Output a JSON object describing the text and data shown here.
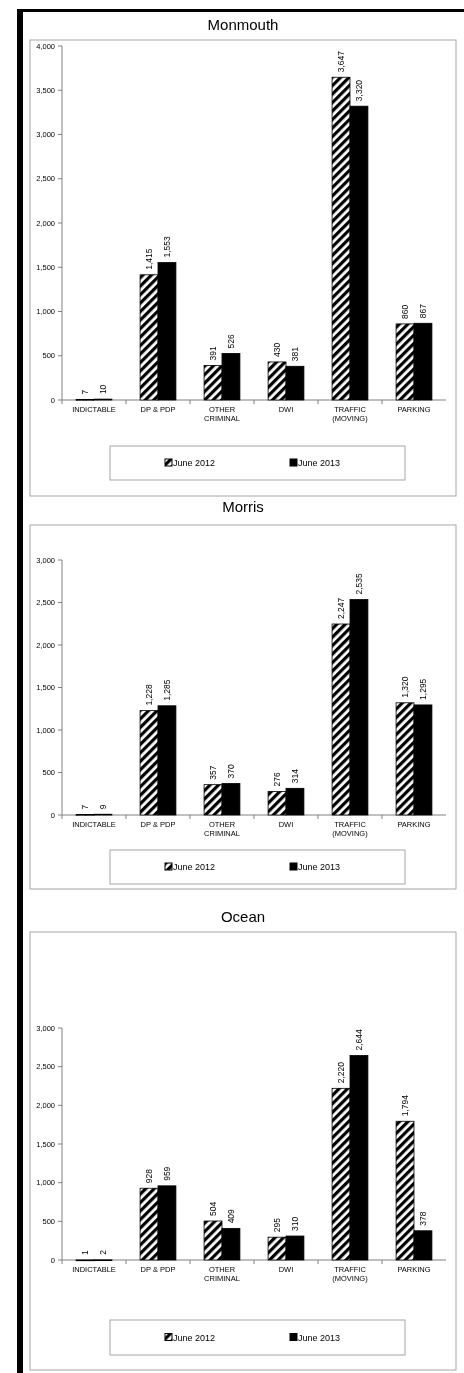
{
  "chart_data": [
    {
      "type": "bar",
      "title": "Monmouth",
      "categories": [
        "INDICTABLE",
        "DP & PDP",
        "OTHER CRIMINAL",
        "DWI",
        "TRAFFIC (MOVING)",
        "PARKING"
      ],
      "series": [
        {
          "name": "June 2012",
          "color": "#000000",
          "values": [
            7,
            1415,
            391,
            430,
            3647,
            860
          ],
          "value_labels": [
            "7",
            "1,415",
            "391",
            "430",
            "3,647",
            "860"
          ]
        },
        {
          "name": "June 2013",
          "color": "#000000",
          "values": [
            10,
            1553,
            526,
            381,
            3320,
            867
          ],
          "value_labels": [
            "10",
            "1,553",
            "526",
            "381",
            "3,320",
            "867"
          ]
        }
      ],
      "ylim": [
        0,
        4000
      ],
      "yticks": [
        {
          "value": 0,
          "label": "0"
        },
        {
          "value": 500,
          "label": "500"
        },
        {
          "value": 1000,
          "label": "1,000"
        },
        {
          "value": 1500,
          "label": "1,500"
        },
        {
          "value": 2000,
          "label": "2,000"
        },
        {
          "value": 2500,
          "label": "2,500"
        },
        {
          "value": 3000,
          "label": "3,000"
        },
        {
          "value": 3500,
          "label": "3,500"
        },
        {
          "value": 4000,
          "label": "4,000"
        }
      ],
      "legend": "bottom"
    },
    {
      "type": "bar",
      "title": "Morris",
      "categories": [
        "INDICTABLE",
        "DP & PDP",
        "OTHER CRIMINAL",
        "DWI",
        "TRAFFIC (MOVING)",
        "PARKING"
      ],
      "series": [
        {
          "name": "June 2012",
          "color": "#000000",
          "values": [
            7,
            1228,
            357,
            276,
            2247,
            1320
          ],
          "value_labels": [
            "7",
            "1,228",
            "357",
            "276",
            "2,247",
            "1,320"
          ]
        },
        {
          "name": "June 2013",
          "color": "#000000",
          "values": [
            9,
            1285,
            370,
            314,
            2535,
            1295
          ],
          "value_labels": [
            "9",
            "1,285",
            "370",
            "314",
            "2,535",
            "1,295"
          ]
        }
      ],
      "ylim": [
        0,
        3000
      ],
      "yticks": [
        {
          "value": 0,
          "label": "0"
        },
        {
          "value": 500,
          "label": "500"
        },
        {
          "value": 1000,
          "label": "1,000"
        },
        {
          "value": 1500,
          "label": "1,500"
        },
        {
          "value": 2000,
          "label": "2,000"
        },
        {
          "value": 2500,
          "label": "2,500"
        },
        {
          "value": 3000,
          "label": "3,000"
        }
      ],
      "legend": "bottom"
    },
    {
      "type": "bar",
      "title": "Ocean",
      "categories": [
        "INDICTABLE",
        "DP & PDP",
        "OTHER CRIMINAL",
        "DWI",
        "TRAFFIC (MOVING)",
        "PARKING"
      ],
      "series": [
        {
          "name": "June 2012",
          "color": "#000000",
          "values": [
            1,
            928,
            504,
            295,
            2220,
            1794
          ],
          "value_labels": [
            "1",
            "928",
            "504",
            "295",
            "2,220",
            "1,794"
          ]
        },
        {
          "name": "June 2013",
          "color": "#000000",
          "values": [
            2,
            959,
            409,
            310,
            2644,
            378
          ],
          "value_labels": [
            "2",
            "959",
            "409",
            "310",
            "2,644",
            "378"
          ]
        }
      ],
      "ylim": [
        0,
        3000
      ],
      "yticks": [
        {
          "value": 0,
          "label": "0"
        },
        {
          "value": 500,
          "label": "500"
        },
        {
          "value": 1000,
          "label": "1,000"
        },
        {
          "value": 1500,
          "label": "1,500"
        },
        {
          "value": 2000,
          "label": "2,000"
        },
        {
          "value": 2500,
          "label": "2,500"
        },
        {
          "value": 3000,
          "label": "3,000"
        }
      ],
      "legend": "bottom"
    }
  ]
}
